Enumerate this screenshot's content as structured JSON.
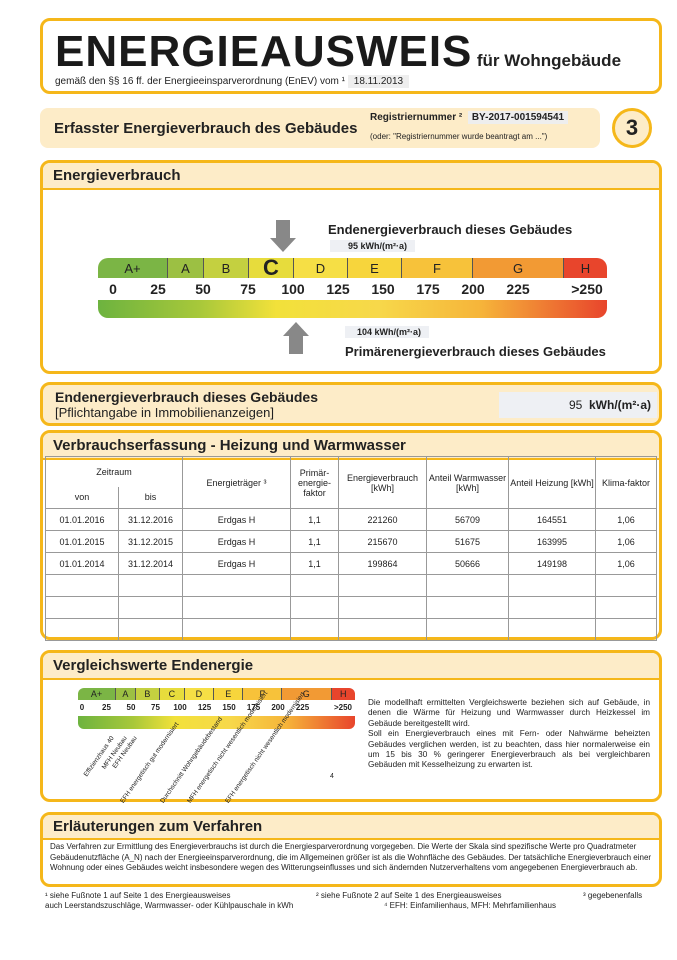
{
  "header": {
    "title": "ENERGIEAUSWEIS",
    "title_suffix": "für Wohngebäude",
    "subtitle": "gemäß den §§ 16 ff. der Energieeinsparverordnung (EnEV) vom ¹",
    "date": "18.11.2013"
  },
  "registration": {
    "heading": "Erfasster Energieverbrauch des Gebäudes",
    "label": "Registriernummer ²",
    "number": "BY-2017-001594541",
    "note": "(oder: \"Registriernummer wurde beantragt am ...\")",
    "page": "3"
  },
  "consumption": {
    "heading": "Energieverbrauch",
    "end_label": "Endenergieverbrauch dieses Gebäudes",
    "end_value": "95",
    "unit": "kWh/(m²·a)",
    "primary_label": "Primärenergieverbrauch dieses Gebäudes",
    "primary_value": "104",
    "classes": [
      "A+",
      "A",
      "B",
      "C",
      "D",
      "E",
      "F",
      "G",
      "H"
    ],
    "ticks": [
      "0",
      "25",
      "50",
      "75",
      "100",
      "125",
      "150",
      "175",
      "200",
      "225",
      ">250"
    ],
    "active_class": "C"
  },
  "end_box": {
    "title": "Endenergieverbrauch dieses Gebäudes",
    "subtitle": "[Pflichtangabe in Immobilienanzeigen]",
    "value": "95",
    "unit": "kWh/(m²·a)"
  },
  "records": {
    "heading": "Verbrauchserfassung - Heizung und Warmwasser",
    "columns": {
      "period": "Zeitraum",
      "from": "von",
      "to": "bis",
      "carrier": "Energieträger ³",
      "factor": "Primär-energie-faktor",
      "consumption": "Energieverbrauch [kWh]",
      "ww": "Anteil Warmwasser [kWh]",
      "heating": "Anteil Heizung [kWh]",
      "climate": "Klima-faktor"
    },
    "rows": [
      [
        "01.01.2016",
        "31.12.2016",
        "Erdgas H",
        "1,1",
        "221260",
        "56709",
        "164551",
        "1,06"
      ],
      [
        "01.01.2015",
        "31.12.2015",
        "Erdgas H",
        "1,1",
        "215670",
        "51675",
        "163995",
        "1,06"
      ],
      [
        "01.01.2014",
        "31.12.2014",
        "Erdgas H",
        "1,1",
        "199864",
        "50666",
        "149198",
        "1,06"
      ]
    ]
  },
  "comparison": {
    "heading": "Vergleichswerte Endenergie",
    "labels": [
      "Effizienzhaus 40",
      "MFH Neubau",
      "EFH Neubau",
      "EFH energetisch gut modernisiert",
      "Durchschnitt Wohngebäudebestand",
      "MFH energetisch nicht wesentlich modernisiert",
      "EFH energetisch nicht wesentlich modernisiert"
    ],
    "footnote_mark": "4",
    "text": "Die modellhaft ermittelten Vergleichswerte beziehen sich auf Gebäude, in denen die Wärme für Heizung und Warmwasser durch Heizkessel im Gebäude bereitgestellt wird.\nSoll ein Energieverbrauch eines mit Fern- oder Nahwärme beheizten Gebäudes verglichen werden, ist zu beachten, dass hier normalerweise ein um 15 bis 30 % geringerer Energieverbrauch als bei vergleichbaren Gebäuden mit Kesselheizung zu erwarten ist."
  },
  "explanation": {
    "heading": "Erläuterungen zum Verfahren",
    "text": "Das Verfahren zur Ermittlung des Energieverbrauchs ist durch die Energiesparverordnung vorgegeben. Die Werte der Skala sind spezifische Werte pro Quadratmeter Gebäudenutzfläche (A_N) nach der Energieeinsparverordnung, die im Allgemeinen größer ist als die Wohnfläche des Gebäudes. Der tatsächliche Energieverbrauch einer Wohnung oder eines Gebäudes weicht insbesondere wegen des Witterungseinflusses und sich ändernden Nutzerverhaltens vom angegebenen Energieverbrauch ab."
  },
  "footnotes": {
    "f1": "¹ siehe Fußnote 1 auf Seite 1 des Energieausweises",
    "f2": "² siehe Fußnote 2 auf Seite 1 des Energieausweises",
    "f3": "³ gegebenenfalls",
    "f3b": "auch Leerstandszuschläge, Warmwasser- oder Kühlpauschale in kWh",
    "f4": "⁴ EFH: Einfamilienhaus, MFH: Mehrfamilienhaus"
  }
}
